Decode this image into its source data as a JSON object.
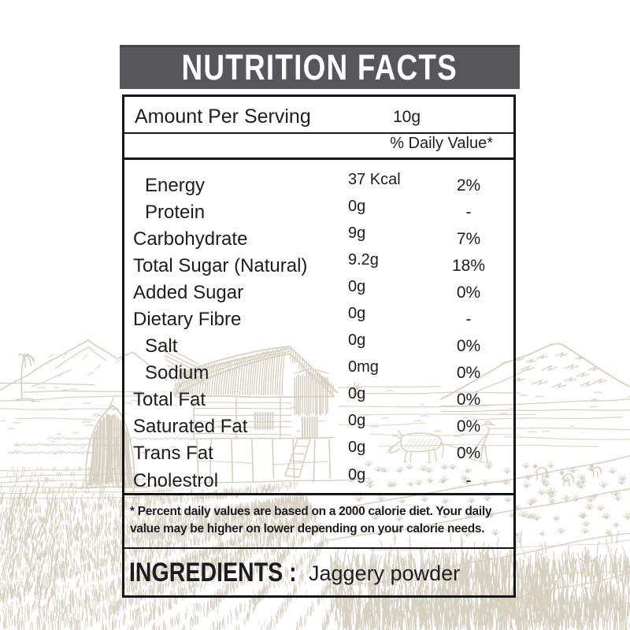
{
  "header": {
    "title": "NUTRITION FACTS"
  },
  "label": {
    "serving_label": "Amount Per Serving",
    "serving_value": "10g",
    "daily_value_header": "% Daily Value*",
    "rows": [
      {
        "name": "Energy",
        "amount": "37 Kcal",
        "percent": "2%",
        "indent": true
      },
      {
        "name": "Protein",
        "amount": "0g",
        "percent": "-",
        "indent": true
      },
      {
        "name": "Carbohydrate",
        "amount": "9g",
        "percent": "7%",
        "indent": false
      },
      {
        "name": "Total Sugar (Natural)",
        "amount": "9.2g",
        "percent": "18%",
        "indent": false
      },
      {
        "name": "Added Sugar",
        "amount": "0g",
        "percent": "0%",
        "indent": false
      },
      {
        "name": "Dietary Fibre",
        "amount": "0g",
        "percent": "-",
        "indent": false
      },
      {
        "name": "Salt",
        "amount": "0g",
        "percent": "0%",
        "indent": true
      },
      {
        "name": "Sodium",
        "amount": "0mg",
        "percent": "0%",
        "indent": true
      },
      {
        "name": "Total Fat",
        "amount": "0g",
        "percent": "0%",
        "indent": false
      },
      {
        "name": "Saturated Fat",
        "amount": "0g",
        "percent": "0%",
        "indent": false
      },
      {
        "name": "Trans Fat",
        "amount": "0g",
        "percent": "0%",
        "indent": false
      },
      {
        "name": "Cholestrol",
        "amount": "0g",
        "percent": "-",
        "indent": false
      }
    ],
    "footnote_line1": "* Percent daily values are based on a 2000 calorie diet. Your daily",
    "footnote_line2": "value may be higher on lower depending on your calorie needs.",
    "ingredients_label": "INGREDIENTS :",
    "ingredients_value": "Jaggery powder"
  },
  "colors": {
    "header_bg": "#57565b",
    "text": "#1d1d1f",
    "sketch": "#d6d0c1"
  }
}
